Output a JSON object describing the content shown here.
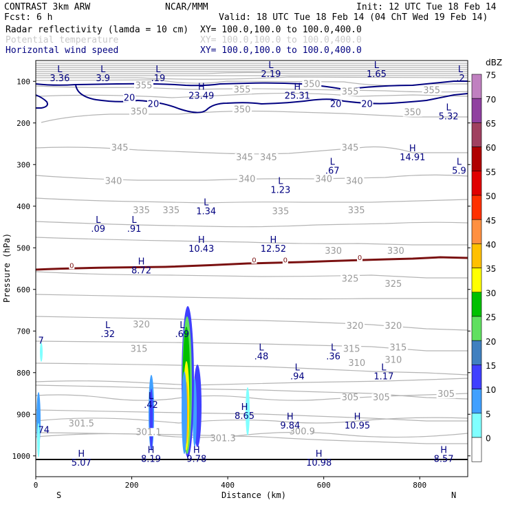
{
  "header": {
    "line1_left": "CONTRAST  3km ARW",
    "line1_mid": "NCAR/MMM",
    "line1_right": "Init: 12 UTC Tue 18 Feb 14",
    "line2_left": "Fcst:      6 h",
    "line2_right": "Valid: 18 UTC Tue 18 Feb 14 (04 ChT Wed 19 Feb 14)",
    "field1_name": "Radar reflectivity (lamda = 10 cm)",
    "field1_range": "XY= 100.0,100.0 to 100.0,400.0",
    "field2_name": "Potential temperature",
    "field2_range": "XY= 100.0,100.0 to 100.0,400.0",
    "field3_name": "Horizontal wind speed",
    "field3_range": "XY= 100.0,100.0 to 100.0,400.0"
  },
  "chart_data": {
    "type": "cross-section",
    "xlabel": "Distance (km)",
    "ylabel": "Pressure (hPa)",
    "xlim": [
      0,
      900
    ],
    "ylim": [
      1050,
      50
    ],
    "x_ticks": [
      0,
      200,
      400,
      600,
      800
    ],
    "y_ticks": [
      100,
      200,
      300,
      400,
      500,
      600,
      700,
      800,
      900,
      1000
    ],
    "x_end_labels": {
      "left": "S",
      "right": "N"
    },
    "colorbar": {
      "unit": "dBZ",
      "levels": [
        75,
        70,
        65,
        60,
        55,
        50,
        45,
        40,
        35,
        30,
        25,
        20,
        15,
        10,
        5,
        0
      ],
      "colors": [
        "#c080c0",
        "#9040a0",
        "#a04060",
        "#b00000",
        "#e00000",
        "#ff3000",
        "#ff9040",
        "#ffc000",
        "#ffff00",
        "#00c000",
        "#60e060",
        "#4080c0",
        "#4040ff",
        "#40a0ff",
        "#80ffff",
        "#ffffff"
      ]
    },
    "theta_labels": [
      {
        "text": "355",
        "x": 225,
        "p": 115
      },
      {
        "text": "355",
        "x": 430,
        "p": 125
      },
      {
        "text": "350",
        "x": 575,
        "p": 112
      },
      {
        "text": "355",
        "x": 655,
        "p": 130
      },
      {
        "text": "355",
        "x": 825,
        "p": 127
      },
      {
        "text": "350",
        "x": 215,
        "p": 178
      },
      {
        "text": "350",
        "x": 430,
        "p": 173
      },
      {
        "text": "350",
        "x": 785,
        "p": 180
      },
      {
        "text": "345",
        "x": 175,
        "p": 265
      },
      {
        "text": "345",
        "x": 435,
        "p": 288
      },
      {
        "text": "345",
        "x": 485,
        "p": 288
      },
      {
        "text": "345",
        "x": 655,
        "p": 265
      },
      {
        "text": "340",
        "x": 162,
        "p": 345
      },
      {
        "text": "340",
        "x": 440,
        "p": 340
      },
      {
        "text": "340",
        "x": 600,
        "p": 340
      },
      {
        "text": "340",
        "x": 664,
        "p": 345
      },
      {
        "text": "335",
        "x": 220,
        "p": 415
      },
      {
        "text": "335",
        "x": 282,
        "p": 415
      },
      {
        "text": "335",
        "x": 510,
        "p": 418
      },
      {
        "text": "335",
        "x": 668,
        "p": 415
      },
      {
        "text": "330",
        "x": 620,
        "p": 513
      },
      {
        "text": "330",
        "x": 750,
        "p": 513
      },
      {
        "text": "325",
        "x": 655,
        "p": 580
      },
      {
        "text": "325",
        "x": 745,
        "p": 592
      },
      {
        "text": "320",
        "x": 220,
        "p": 690
      },
      {
        "text": "320",
        "x": 665,
        "p": 693
      },
      {
        "text": "320",
        "x": 745,
        "p": 693
      },
      {
        "text": "315",
        "x": 215,
        "p": 748
      },
      {
        "text": "315",
        "x": 658,
        "p": 748
      },
      {
        "text": "315",
        "x": 755,
        "p": 745
      },
      {
        "text": "310",
        "x": 669,
        "p": 782
      },
      {
        "text": "310",
        "x": 745,
        "p": 775
      },
      {
        "text": "305",
        "x": 655,
        "p": 865
      },
      {
        "text": "305",
        "x": 720,
        "p": 865
      },
      {
        "text": "305",
        "x": 855,
        "p": 857
      },
      {
        "text": "301.5",
        "x": 95,
        "p": 928
      },
      {
        "text": "301.1",
        "x": 235,
        "p": 948
      },
      {
        "text": "301.3",
        "x": 390,
        "p": 963
      },
      {
        "text": "300.9",
        "x": 555,
        "p": 947
      }
    ],
    "extrema_labels": [
      {
        "mark": "L",
        "value": "3.36",
        "x": 50,
        "p": 78
      },
      {
        "mark": "L",
        "value": "3.9",
        "x": 140,
        "p": 78
      },
      {
        "mark": "L",
        "value": ".19",
        "x": 255,
        "p": 78
      },
      {
        "mark": "L",
        "value": "2.19",
        "x": 490,
        "p": 68
      },
      {
        "mark": "L",
        "value": "1.65",
        "x": 710,
        "p": 68
      },
      {
        "mark": "L",
        "value": ".2",
        "x": 885,
        "p": 78
      },
      {
        "mark": "H",
        "value": "23.49",
        "x": 345,
        "p": 120
      },
      {
        "mark": "H",
        "value": "25.31",
        "x": 545,
        "p": 120
      },
      {
        "mark": "L",
        "value": "5.32",
        "x": 860,
        "p": 170
      },
      {
        "mark": "H",
        "value": "14.91",
        "x": 785,
        "p": 268
      },
      {
        "mark": "L",
        "value": ".67",
        "x": 618,
        "p": 300
      },
      {
        "mark": "L",
        "value": "5.9",
        "x": 882,
        "p": 300
      },
      {
        "mark": "L",
        "value": "1.23",
        "x": 510,
        "p": 347
      },
      {
        "mark": "L",
        "value": "1.34",
        "x": 355,
        "p": 398
      },
      {
        "mark": "L",
        "value": ".09",
        "x": 130,
        "p": 440
      },
      {
        "mark": "L",
        "value": ".91",
        "x": 205,
        "p": 440
      },
      {
        "mark": "H",
        "value": "10.43",
        "x": 345,
        "p": 488
      },
      {
        "mark": "H",
        "value": "12.52",
        "x": 495,
        "p": 488
      },
      {
        "mark": "H",
        "value": "8.72",
        "x": 220,
        "p": 540
      },
      {
        "mark": "L",
        "value": ".32",
        "x": 150,
        "p": 693
      },
      {
        "mark": "L",
        "value": ".69",
        "x": 305,
        "p": 693
      },
      {
        "mark": "L",
        "value": ".48",
        "x": 470,
        "p": 747
      },
      {
        "mark": "L",
        "value": ".36",
        "x": 620,
        "p": 747
      },
      {
        "mark": "L",
        "value": ".94",
        "x": 545,
        "p": 795
      },
      {
        "mark": "L",
        "value": "1.17",
        "x": 725,
        "p": 795
      },
      {
        "mark": "L",
        "value": ".42",
        "x": 240,
        "p": 863
      },
      {
        "mark": "H",
        "value": "8.65",
        "x": 435,
        "p": 890
      },
      {
        "mark": "H",
        "value": "9.84",
        "x": 530,
        "p": 913
      },
      {
        "mark": "H",
        "value": "10.95",
        "x": 670,
        "p": 913
      },
      {
        "mark": "H",
        "value": "5.07",
        "x": 95,
        "p": 1002
      },
      {
        "mark": "H",
        "value": "8.19",
        "x": 240,
        "p": 993
      },
      {
        "mark": "H",
        "value": "9.78",
        "x": 335,
        "p": 993
      },
      {
        "mark": "H",
        "value": "10.98",
        "x": 590,
        "p": 1002
      },
      {
        "mark": "H",
        "value": "8.57",
        "x": 850,
        "p": 993
      }
    ],
    "edge_labels": [
      {
        "text": "7",
        "x": 5,
        "p": 730
      },
      {
        "text": "74",
        "x": 5,
        "p": 945
      }
    ],
    "wind_labels": [
      {
        "text": "20",
        "x": 195,
        "p": 145
      },
      {
        "text": "20",
        "x": 245,
        "p": 160
      },
      {
        "text": "20",
        "x": 625,
        "p": 160
      },
      {
        "text": "20",
        "x": 690,
        "p": 160
      }
    ],
    "freezing_labels": [
      {
        "text": "0",
        "x": 75,
        "p": 543
      },
      {
        "text": "0",
        "x": 455,
        "p": 530
      },
      {
        "text": "0",
        "x": 520,
        "p": 530
      },
      {
        "text": "0",
        "x": 675,
        "p": 524
      }
    ]
  }
}
